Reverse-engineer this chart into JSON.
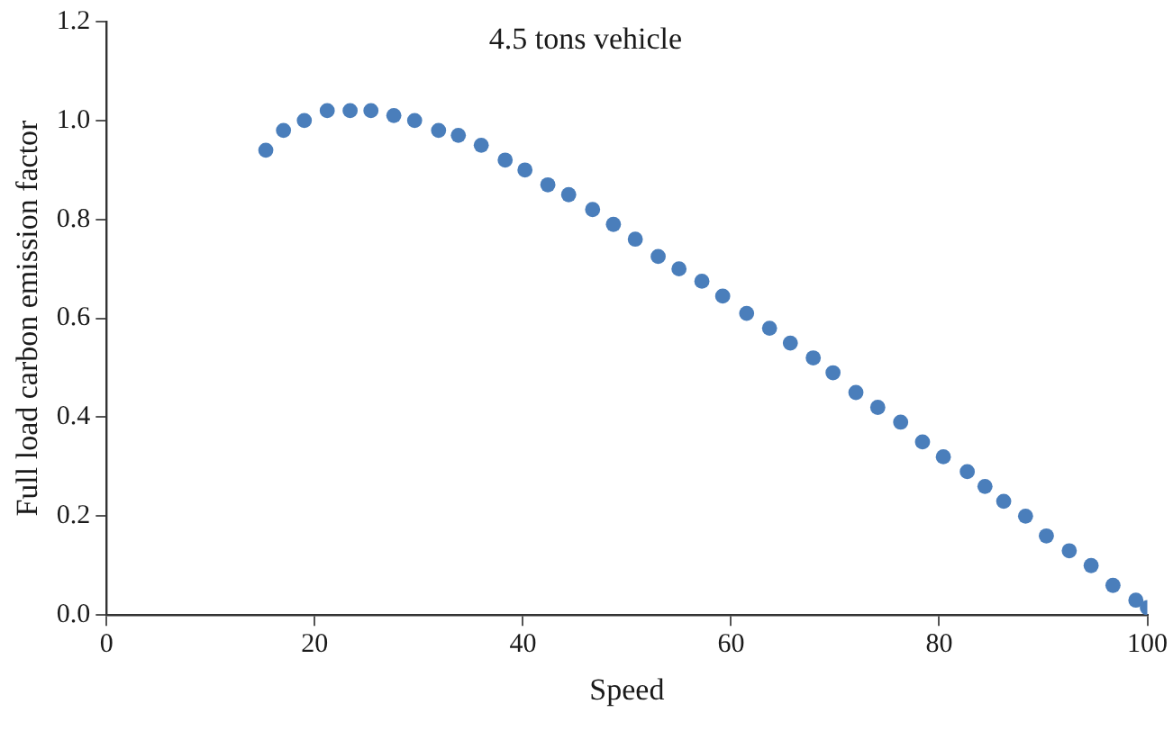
{
  "chart_data": {
    "type": "scatter",
    "title": "4.5 tons vehicle",
    "xlabel": "Speed",
    "ylabel": "Full load carbon emission factor",
    "x": [
      15.3,
      17,
      19,
      21.2,
      23.4,
      25.4,
      27.6,
      29.6,
      31.9,
      33.8,
      36,
      38.3,
      40.2,
      42.4,
      44.4,
      46.7,
      48.7,
      50.8,
      53,
      55,
      57.2,
      59.2,
      61.5,
      63.7,
      65.7,
      67.9,
      69.8,
      72,
      74.1,
      76.3,
      78.4,
      80.4,
      82.7,
      84.4,
      86.2,
      88.3,
      90.3,
      92.5,
      94.6,
      96.7,
      98.9,
      100
    ],
    "series": [
      {
        "color": "#4a7ebb",
        "values": [
          0.94,
          0.98,
          1.0,
          1.02,
          1.02,
          1.02,
          1.01,
          1.0,
          0.98,
          0.97,
          0.95,
          0.92,
          0.9,
          0.87,
          0.85,
          0.82,
          0.79,
          0.76,
          0.725,
          0.7,
          0.675,
          0.645,
          0.61,
          0.58,
          0.55,
          0.52,
          0.49,
          0.45,
          0.42,
          0.39,
          0.35,
          0.32,
          0.29,
          0.26,
          0.23,
          0.2,
          0.16,
          0.13,
          0.1,
          0.06,
          0.03,
          0.015
        ]
      }
    ],
    "xlim": [
      0,
      100
    ],
    "xticks": [
      0,
      20,
      40,
      60,
      80,
      100
    ],
    "ylim": [
      0,
      1.2
    ],
    "yticks": [
      {
        "value": 0,
        "label": "0.0"
      },
      {
        "value": 0.2,
        "label": "0.2"
      },
      {
        "value": 0.4,
        "label": "0.4"
      },
      {
        "value": 0.6,
        "label": "0.6"
      },
      {
        "value": 0.8,
        "label": "0.8"
      },
      {
        "value": 1,
        "label": "1.0"
      },
      {
        "value": 1.2,
        "label": "1.2"
      }
    ],
    "grid": false,
    "legend": false,
    "marker": "circle"
  }
}
